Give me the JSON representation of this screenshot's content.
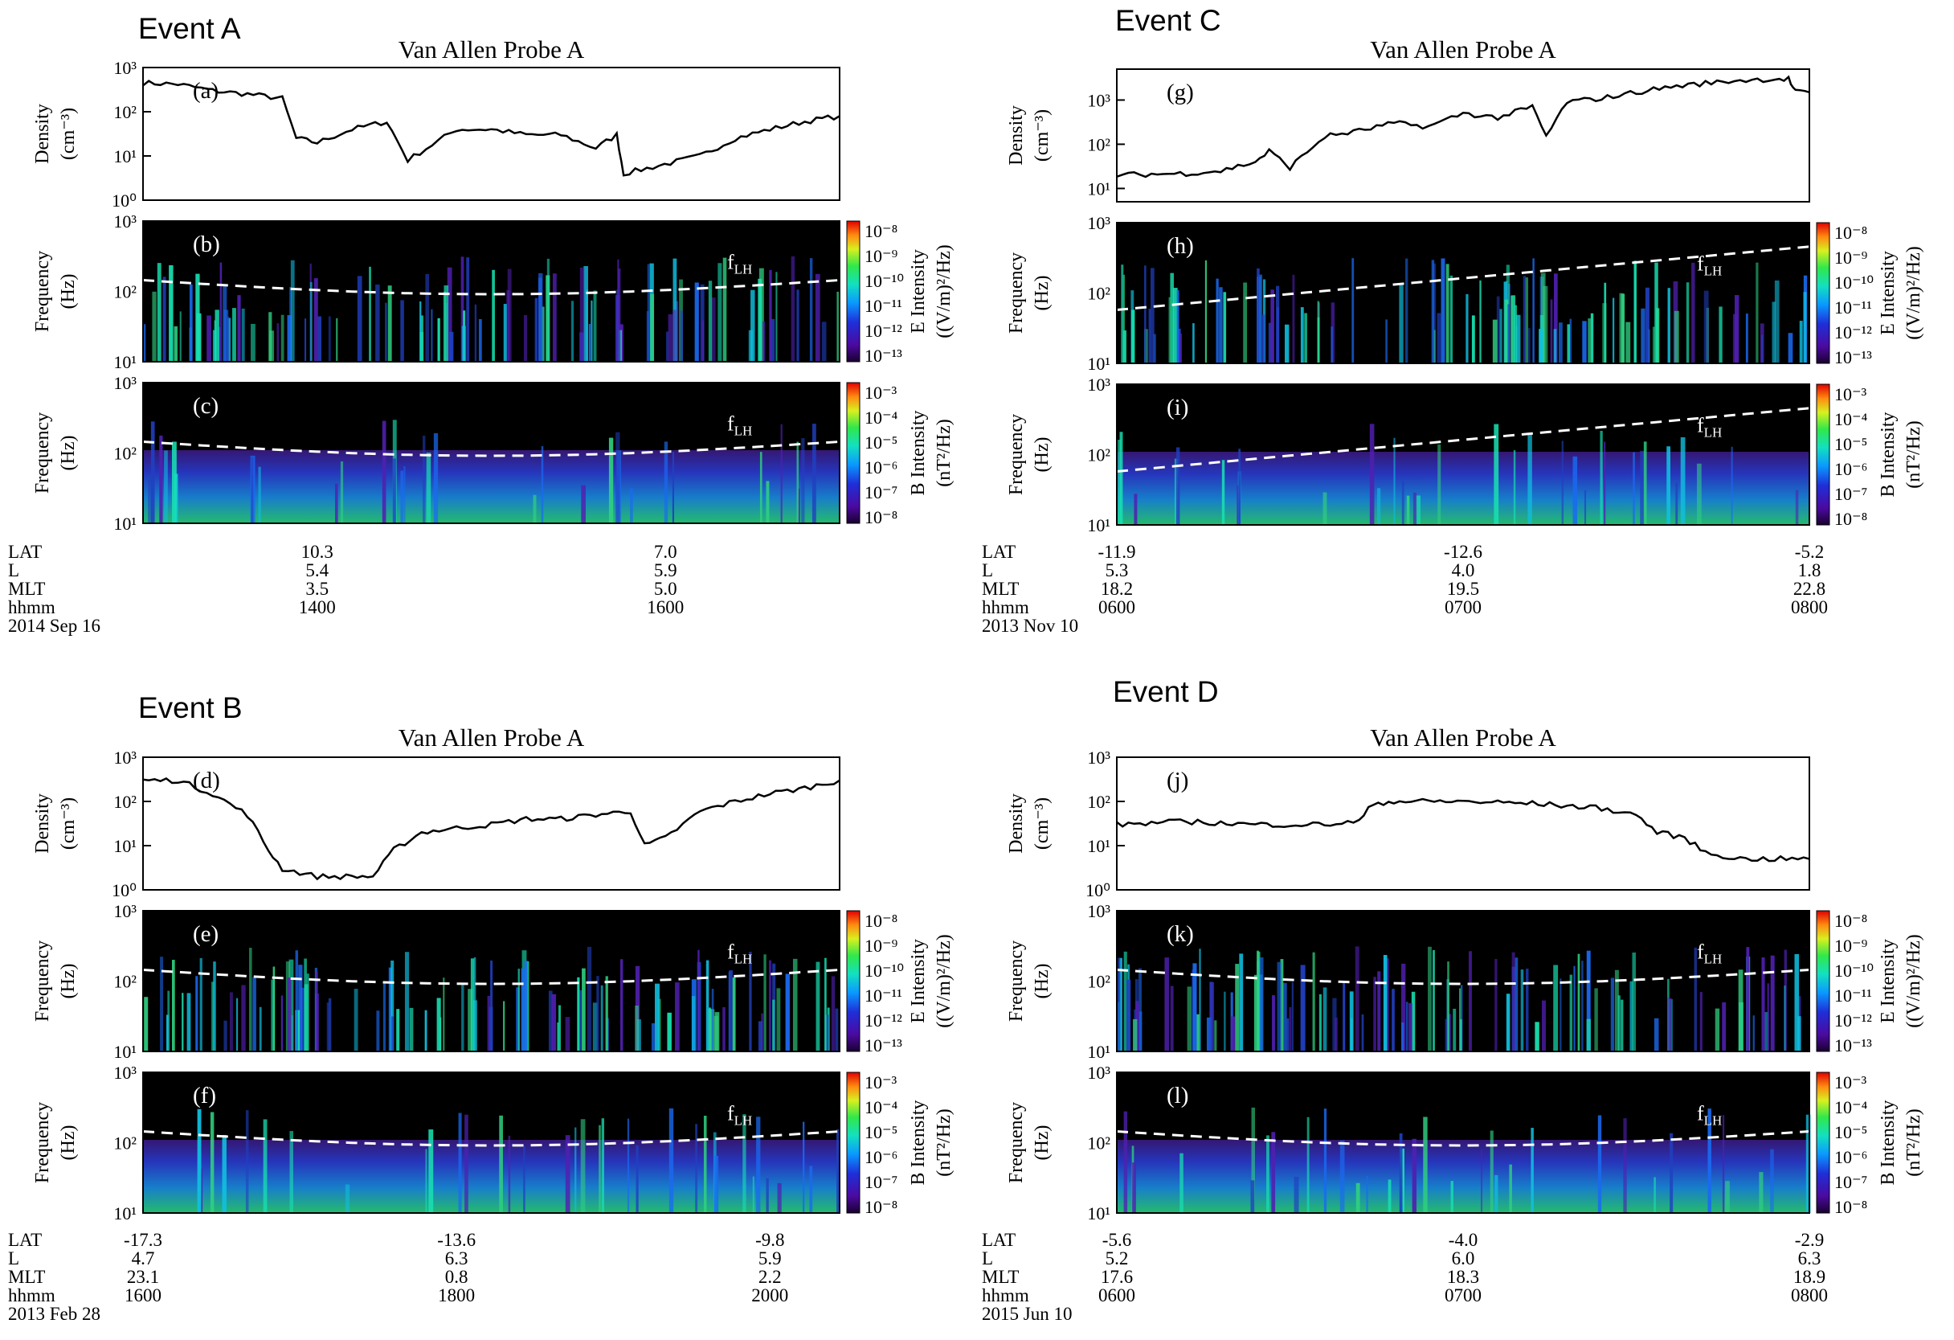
{
  "figure": {
    "flh_label": "f",
    "flh_sub": "LH",
    "density_label": "Density",
    "density_unit": "(cm⁻³)",
    "freq_label": "Frequency",
    "freq_unit": "(Hz)",
    "e_label": "E Intensity",
    "e_unit": "((V/m)²/Hz)",
    "b_label": "B Intensity",
    "b_unit": "(nT²/Hz)",
    "e_ticks": [
      "10⁻⁸",
      "10⁻⁹",
      "10⁻¹⁰",
      "10⁻¹¹",
      "10⁻¹²",
      "10⁻¹³"
    ],
    "b_ticks": [
      "10⁻³",
      "10⁻⁴",
      "10⁻⁵",
      "10⁻⁶",
      "10⁻⁷",
      "10⁻⁸"
    ],
    "density_ticks": [
      "10³",
      "10²",
      "10¹",
      "10⁰"
    ],
    "freq_ticks": [
      "10³",
      "10²",
      "10¹"
    ],
    "row_labels": [
      "LAT",
      "L",
      "MLT",
      "hhmm"
    ],
    "colors": {
      "bg": "#000000",
      "line": "#000000",
      "flh": "#ffffff"
    }
  },
  "chart_data": [
    {
      "event": "Event A",
      "probe": "Van Allen Probe A",
      "date": "2014 Sep 16",
      "type": "line",
      "panels": [
        "(a)",
        "(b)",
        "(c)"
      ],
      "ylim_density": [
        1,
        1000
      ],
      "density_cm3": [
        [
          0,
          450
        ],
        [
          0.05,
          420
        ],
        [
          0.1,
          300
        ],
        [
          0.15,
          250
        ],
        [
          0.2,
          200
        ],
        [
          0.22,
          25
        ],
        [
          0.25,
          20
        ],
        [
          0.3,
          40
        ],
        [
          0.35,
          60
        ],
        [
          0.38,
          8
        ],
        [
          0.45,
          40
        ],
        [
          0.5,
          40
        ],
        [
          0.55,
          30
        ],
        [
          0.6,
          30
        ],
        [
          0.65,
          15
        ],
        [
          0.68,
          30
        ],
        [
          0.69,
          4
        ],
        [
          0.74,
          6
        ],
        [
          0.8,
          10
        ],
        [
          0.85,
          25
        ],
        [
          0.9,
          40
        ],
        [
          0.95,
          60
        ],
        [
          1,
          80
        ]
      ],
      "ephemeris": [
        {
          "LAT": "10.3",
          "L": "5.4",
          "MLT": "3.5",
          "hhmm": "1400",
          "x": 0.25
        },
        {
          "LAT": "7.0",
          "L": "5.9",
          "MLT": "5.0",
          "hhmm": "1600",
          "x": 0.75
        }
      ]
    },
    {
      "event": "Event B",
      "probe": "Van Allen Probe A",
      "date": "2013 Feb 28",
      "type": "line",
      "panels": [
        "(d)",
        "(e)",
        "(f)"
      ],
      "ylim_density": [
        1,
        1000
      ],
      "density_cm3": [
        [
          0,
          300
        ],
        [
          0.05,
          300
        ],
        [
          0.1,
          150
        ],
        [
          0.15,
          50
        ],
        [
          0.18,
          8
        ],
        [
          0.2,
          3
        ],
        [
          0.25,
          2
        ],
        [
          0.3,
          2
        ],
        [
          0.33,
          2
        ],
        [
          0.36,
          8
        ],
        [
          0.4,
          20
        ],
        [
          0.45,
          25
        ],
        [
          0.5,
          30
        ],
        [
          0.55,
          40
        ],
        [
          0.6,
          40
        ],
        [
          0.65,
          50
        ],
        [
          0.7,
          60
        ],
        [
          0.72,
          10
        ],
        [
          0.75,
          15
        ],
        [
          0.8,
          60
        ],
        [
          0.85,
          100
        ],
        [
          0.9,
          150
        ],
        [
          0.95,
          200
        ],
        [
          1,
          300
        ]
      ],
      "ephemeris": [
        {
          "LAT": "-17.3",
          "L": "4.7",
          "MLT": "23.1",
          "hhmm": "1600",
          "x": 0.0
        },
        {
          "LAT": "-13.6",
          "L": "6.3",
          "MLT": "0.8",
          "hhmm": "1800",
          "x": 0.45
        },
        {
          "LAT": "-9.8",
          "L": "5.9",
          "MLT": "2.2",
          "hhmm": "2000",
          "x": 0.9
        }
      ]
    },
    {
      "event": "Event C",
      "probe": "Van Allen Probe A",
      "date": "2013 Nov 10",
      "type": "line",
      "panels": [
        "(g)",
        "(h)",
        "(i)"
      ],
      "ylim_density": [
        5,
        5000
      ],
      "density_cm3": [
        [
          0,
          20
        ],
        [
          0.1,
          22
        ],
        [
          0.15,
          25
        ],
        [
          0.2,
          40
        ],
        [
          0.22,
          70
        ],
        [
          0.25,
          30
        ],
        [
          0.3,
          150
        ],
        [
          0.35,
          200
        ],
        [
          0.4,
          300
        ],
        [
          0.45,
          250
        ],
        [
          0.5,
          500
        ],
        [
          0.55,
          400
        ],
        [
          0.6,
          700
        ],
        [
          0.62,
          150
        ],
        [
          0.65,
          900
        ],
        [
          0.7,
          1100
        ],
        [
          0.75,
          1500
        ],
        [
          0.8,
          2000
        ],
        [
          0.85,
          2400
        ],
        [
          0.9,
          2800
        ],
        [
          0.95,
          3000
        ],
        [
          0.97,
          3000
        ],
        [
          0.98,
          1500
        ],
        [
          1,
          1500
        ]
      ],
      "ephemeris": [
        {
          "LAT": "-11.9",
          "L": "5.3",
          "MLT": "18.2",
          "hhmm": "0600",
          "x": 0.0
        },
        {
          "LAT": "-12.6",
          "L": "4.0",
          "MLT": "19.5",
          "hhmm": "0700",
          "x": 0.5
        },
        {
          "LAT": "-5.2",
          "L": "1.8",
          "MLT": "22.8",
          "hhmm": "0800",
          "x": 1.0
        }
      ]
    },
    {
      "event": "Event D",
      "probe": "Van Allen Probe A",
      "date": "2015 Jun 10",
      "type": "line",
      "panels": [
        "(j)",
        "(k)",
        "(l)"
      ],
      "ylim_density": [
        1,
        1000
      ],
      "density_cm3": [
        [
          0,
          30
        ],
        [
          0.1,
          35
        ],
        [
          0.2,
          30
        ],
        [
          0.3,
          30
        ],
        [
          0.35,
          35
        ],
        [
          0.37,
          90
        ],
        [
          0.4,
          100
        ],
        [
          0.5,
          100
        ],
        [
          0.6,
          90
        ],
        [
          0.7,
          70
        ],
        [
          0.75,
          50
        ],
        [
          0.78,
          20
        ],
        [
          0.82,
          15
        ],
        [
          0.85,
          7
        ],
        [
          0.9,
          5
        ],
        [
          0.95,
          5
        ],
        [
          1,
          5
        ]
      ],
      "ephemeris": [
        {
          "LAT": "-5.6",
          "L": "5.2",
          "MLT": "17.6",
          "hhmm": "0600",
          "x": 0.0
        },
        {
          "LAT": "-4.0",
          "L": "6.0",
          "MLT": "18.3",
          "hhmm": "0700",
          "x": 0.5
        },
        {
          "LAT": "-2.9",
          "L": "6.3",
          "MLT": "18.9",
          "hhmm": "0800",
          "x": 1.0
        }
      ]
    }
  ]
}
